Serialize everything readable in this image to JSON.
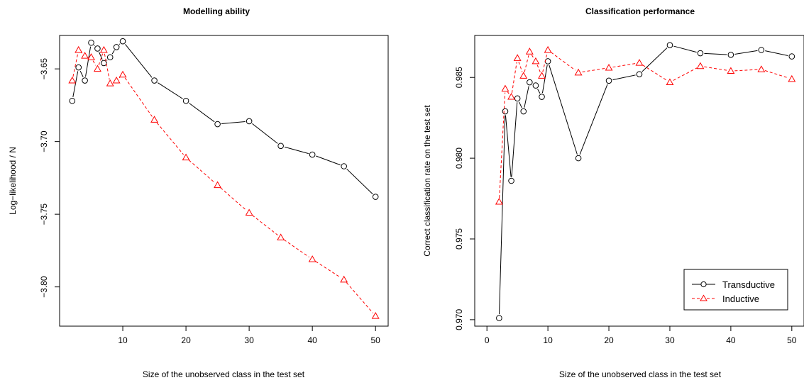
{
  "chart_data": [
    {
      "type": "line",
      "title": "Modelling ability",
      "xlabel": "Size of the unobserved class in the test set",
      "ylabel": "Log−likelihood / N",
      "xlim": [
        0,
        52
      ],
      "ylim": [
        -3.827,
        -3.627
      ],
      "xticks": [
        10,
        20,
        30,
        40,
        50
      ],
      "yticks": [
        -3.65,
        -3.7,
        -3.75,
        -3.8
      ],
      "ytick_labels": [
        "−3.65",
        "−3.70",
        "−3.75",
        "−3.80"
      ],
      "x": [
        2,
        3,
        4,
        5,
        6,
        7,
        8,
        9,
        10,
        15,
        20,
        25,
        30,
        35,
        40,
        45,
        50
      ],
      "series": [
        {
          "color": "#000000",
          "marker": "circle",
          "dash": "solid",
          "values": [
            -3.672,
            -3.649,
            -3.658,
            -3.632,
            -3.636,
            -3.646,
            -3.642,
            -3.635,
            -3.631,
            -3.658,
            -3.672,
            -3.688,
            -3.686,
            -3.703,
            -3.709,
            -3.717,
            -3.738
          ]
        },
        {
          "color": "#ff0000",
          "marker": "triangle",
          "dash": "dashed",
          "values": [
            -3.658,
            -3.637,
            -3.641,
            -3.642,
            -3.65,
            -3.637,
            -3.66,
            -3.658,
            -3.654,
            -3.685,
            -3.711,
            -3.73,
            -3.749,
            -3.766,
            -3.781,
            -3.795,
            -3.82
          ]
        }
      ],
      "grid": false,
      "legend": null
    },
    {
      "type": "line",
      "title": "Classification performance",
      "xlabel": "Size of the unobserved class in the test set",
      "ylabel": "Correct classification rate on the test set",
      "xlim": [
        -2,
        52
      ],
      "ylim": [
        0.9696,
        0.9876
      ],
      "xticks": [
        0,
        10,
        20,
        30,
        40,
        50
      ],
      "yticks": [
        0.97,
        0.975,
        0.98,
        0.985
      ],
      "ytick_labels": [
        "0.970",
        "0.975",
        "0.980",
        "0.985"
      ],
      "x": [
        2,
        3,
        4,
        5,
        6,
        7,
        8,
        9,
        10,
        15,
        20,
        25,
        30,
        35,
        40,
        45,
        50
      ],
      "series": [
        {
          "name": "Transductive",
          "color": "#000000",
          "marker": "circle",
          "dash": "solid",
          "values": [
            0.9701,
            0.9829,
            0.9786,
            0.9837,
            0.9829,
            0.9847,
            0.9845,
            0.9838,
            0.986,
            0.98,
            0.9848,
            0.9852,
            0.987,
            0.9865,
            0.9864,
            0.9867,
            0.9863
          ]
        },
        {
          "name": "Inductive",
          "color": "#ff0000",
          "marker": "triangle",
          "dash": "dashed",
          "values": [
            0.9773,
            0.9843,
            0.9838,
            0.9862,
            0.9851,
            0.9866,
            0.986,
            0.9851,
            0.9867,
            0.9853,
            0.9856,
            0.9859,
            0.9847,
            0.9857,
            0.9854,
            0.9855,
            0.9849
          ]
        }
      ],
      "grid": false,
      "legend": "bottom-right"
    }
  ]
}
